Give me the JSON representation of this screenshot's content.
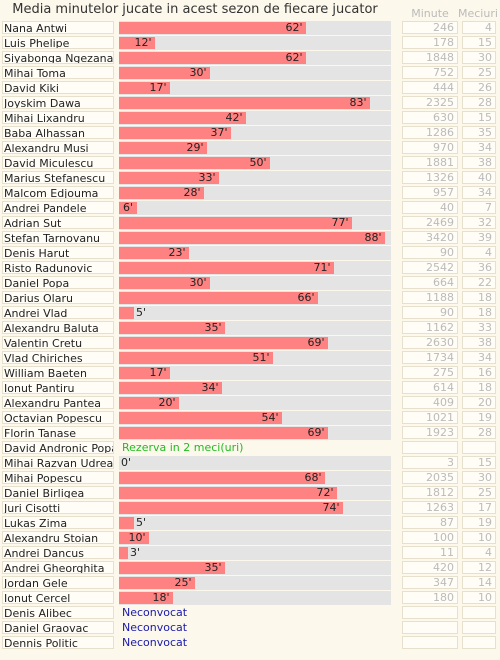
{
  "header": {
    "title": "Media minutelor jucate in acest sezon de fiecare jucator",
    "col_minutes": "Minute",
    "col_matches": "Meciuri"
  },
  "scale_max": 90,
  "colors": {
    "bar": "#ff8282",
    "track": "#e4e4e4",
    "reserve": "#22bb22",
    "unused": "#1a1aa8"
  },
  "players": [
    {
      "name": "Nana Antwi",
      "avg": 62,
      "label": "62'",
      "minutes": "246",
      "matches": "4"
    },
    {
      "name": "Luis Phelipe",
      "avg": 12,
      "label": "12'",
      "minutes": "178",
      "matches": "15"
    },
    {
      "name": "Siyabonga Ngezana",
      "avg": 62,
      "label": "62'",
      "minutes": "1848",
      "matches": "30"
    },
    {
      "name": "Mihai Toma",
      "avg": 30,
      "label": "30'",
      "minutes": "752",
      "matches": "25"
    },
    {
      "name": "David Kiki",
      "avg": 17,
      "label": "17'",
      "minutes": "444",
      "matches": "26"
    },
    {
      "name": "Joyskim Dawa",
      "avg": 83,
      "label": "83'",
      "minutes": "2325",
      "matches": "28"
    },
    {
      "name": "Mihai Lixandru",
      "avg": 42,
      "label": "42'",
      "minutes": "630",
      "matches": "15"
    },
    {
      "name": "Baba Alhassan",
      "avg": 37,
      "label": "37'",
      "minutes": "1286",
      "matches": "35"
    },
    {
      "name": "Alexandru Musi",
      "avg": 29,
      "label": "29'",
      "minutes": "970",
      "matches": "34"
    },
    {
      "name": "David Miculescu",
      "avg": 50,
      "label": "50'",
      "minutes": "1881",
      "matches": "38"
    },
    {
      "name": "Marius Stefanescu",
      "avg": 33,
      "label": "33'",
      "minutes": "1326",
      "matches": "40"
    },
    {
      "name": "Malcom Edjouma",
      "avg": 28,
      "label": "28'",
      "minutes": "957",
      "matches": "34"
    },
    {
      "name": "Andrei Pandele",
      "avg": 6,
      "label": "6'",
      "minutes": "40",
      "matches": "7"
    },
    {
      "name": "Adrian Sut",
      "avg": 77,
      "label": "77'",
      "minutes": "2469",
      "matches": "32"
    },
    {
      "name": "Stefan Tarnovanu",
      "avg": 88,
      "label": "88'",
      "minutes": "3420",
      "matches": "39"
    },
    {
      "name": "Denis Harut",
      "avg": 23,
      "label": "23'",
      "minutes": "90",
      "matches": "4"
    },
    {
      "name": "Risto Radunovic",
      "avg": 71,
      "label": "71'",
      "minutes": "2542",
      "matches": "36"
    },
    {
      "name": "Daniel Popa",
      "avg": 30,
      "label": "30'",
      "minutes": "664",
      "matches": "22"
    },
    {
      "name": "Darius Olaru",
      "avg": 66,
      "label": "66'",
      "minutes": "1188",
      "matches": "18"
    },
    {
      "name": "Andrei Vlad",
      "avg": 5,
      "label": "5'",
      "minutes": "90",
      "matches": "18"
    },
    {
      "name": "Alexandru Baluta",
      "avg": 35,
      "label": "35'",
      "minutes": "1162",
      "matches": "33"
    },
    {
      "name": "Valentin Cretu",
      "avg": 69,
      "label": "69'",
      "minutes": "2630",
      "matches": "38"
    },
    {
      "name": "Vlad Chiriches",
      "avg": 51,
      "label": "51'",
      "minutes": "1734",
      "matches": "34"
    },
    {
      "name": "William Baeten",
      "avg": 17,
      "label": "17'",
      "minutes": "275",
      "matches": "16"
    },
    {
      "name": "Ionut Pantiru",
      "avg": 34,
      "label": "34'",
      "minutes": "614",
      "matches": "18"
    },
    {
      "name": "Alexandru Pantea",
      "avg": 20,
      "label": "20'",
      "minutes": "409",
      "matches": "20"
    },
    {
      "name": "Octavian Popescu",
      "avg": 54,
      "label": "54'",
      "minutes": "1021",
      "matches": "19"
    },
    {
      "name": "Florin Tanase",
      "avg": 69,
      "label": "69'",
      "minutes": "1923",
      "matches": "28"
    },
    {
      "name": "David Andronic Popa",
      "note": "Rezerva in 2 meci(uri)",
      "note_type": "reserve",
      "minutes": "",
      "matches": ""
    },
    {
      "name": "Mihai Razvan Udrea",
      "avg": 0,
      "label": "0'",
      "minutes": "3",
      "matches": "15"
    },
    {
      "name": "Mihai Popescu",
      "avg": 68,
      "label": "68'",
      "minutes": "2035",
      "matches": "30"
    },
    {
      "name": "Daniel Birligea",
      "avg": 72,
      "label": "72'",
      "minutes": "1812",
      "matches": "25"
    },
    {
      "name": "Juri Cisotti",
      "avg": 74,
      "label": "74'",
      "minutes": "1263",
      "matches": "17"
    },
    {
      "name": "Lukas Zima",
      "avg": 5,
      "label": "5'",
      "minutes": "87",
      "matches": "19"
    },
    {
      "name": "Alexandru Stoian",
      "avg": 10,
      "label": "10'",
      "minutes": "100",
      "matches": "10"
    },
    {
      "name": "Andrei Dancus",
      "avg": 3,
      "label": "3'",
      "minutes": "11",
      "matches": "4"
    },
    {
      "name": "Andrei Gheorghita",
      "avg": 35,
      "label": "35'",
      "minutes": "420",
      "matches": "12"
    },
    {
      "name": "Jordan Gele",
      "avg": 25,
      "label": "25'",
      "minutes": "347",
      "matches": "14"
    },
    {
      "name": "Ionut Cercel",
      "avg": 18,
      "label": "18'",
      "minutes": "180",
      "matches": "10"
    },
    {
      "name": "Denis Alibec",
      "note": "Neconvocat",
      "note_type": "unused",
      "minutes": "",
      "matches": ""
    },
    {
      "name": "Daniel Graovac",
      "note": "Neconvocat",
      "note_type": "unused",
      "minutes": "",
      "matches": ""
    },
    {
      "name": "Dennis Politic",
      "note": "Neconvocat",
      "note_type": "unused",
      "minutes": "",
      "matches": ""
    }
  ]
}
